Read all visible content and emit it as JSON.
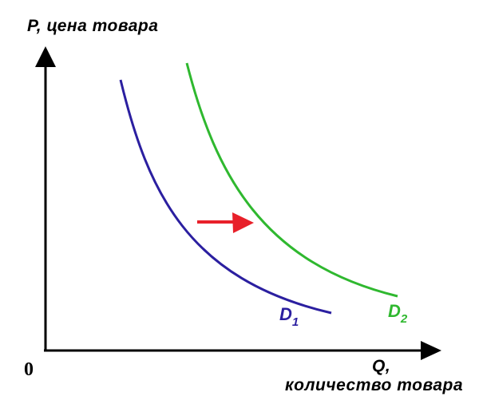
{
  "y_axis_label": "P, цена товара",
  "x_axis_label_line1": "Q,",
  "x_axis_label_line2": "количество товара",
  "origin_label": "0",
  "curves": [
    {
      "letter": "D",
      "subscript": "1",
      "color": "#2b1fa0"
    },
    {
      "letter": "D",
      "subscript": "2",
      "color": "#2fb82f"
    }
  ],
  "shift_arrow_color": "#e8202a",
  "axis_color": "#000000"
}
